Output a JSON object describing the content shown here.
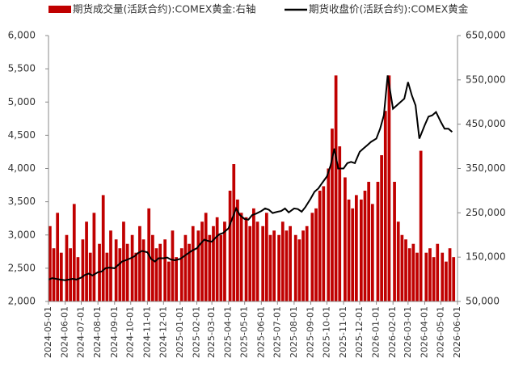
{
  "chart_data": {
    "type": "bar-line",
    "x": [
      "2024-05-01",
      "2024-05-08",
      "2024-05-15",
      "2024-05-22",
      "2024-06-01",
      "2024-06-08",
      "2024-06-15",
      "2024-06-22",
      "2024-07-01",
      "2024-07-08",
      "2024-07-15",
      "2024-07-22",
      "2024-08-01",
      "2024-08-08",
      "2024-08-15",
      "2024-08-22",
      "2024-09-01",
      "2024-09-08",
      "2024-09-15",
      "2024-09-22",
      "2024-10-01",
      "2024-10-08",
      "2024-10-15",
      "2024-10-22",
      "2024-11-01",
      "2024-11-08",
      "2024-11-15",
      "2024-11-22",
      "2024-12-01",
      "2024-12-08",
      "2024-12-15",
      "2024-12-22",
      "2025-01-01",
      "2025-01-08",
      "2025-01-15",
      "2025-01-22",
      "2025-02-01",
      "2025-02-08",
      "2025-02-15",
      "2025-02-22",
      "2025-03-01",
      "2025-03-08",
      "2025-03-15",
      "2025-03-22",
      "2025-04-01",
      "2025-04-08",
      "2025-04-15",
      "2025-04-22",
      "2025-05-01",
      "2025-05-08",
      "2025-05-15",
      "2025-05-22",
      "2025-06-01",
      "2025-06-08",
      "2025-06-15",
      "2025-06-22",
      "2025-07-01",
      "2025-07-08",
      "2025-07-15",
      "2025-07-22",
      "2025-08-01",
      "2025-08-08",
      "2025-08-15",
      "2025-08-22",
      "2025-09-01",
      "2025-09-08",
      "2025-09-15",
      "2025-09-22",
      "2025-10-01",
      "2025-10-08",
      "2025-10-15",
      "2025-10-22",
      "2025-11-01",
      "2025-11-08",
      "2025-11-15",
      "2025-11-22",
      "2025-12-01",
      "2025-12-08",
      "2025-12-15",
      "2025-12-22",
      "2026-01-01",
      "2026-01-08",
      "2026-01-15",
      "2026-01-22",
      "2026-02-01",
      "2026-02-08",
      "2026-02-15",
      "2026-02-22",
      "2026-03-01",
      "2026-03-08",
      "2026-03-15",
      "2026-03-22",
      "2026-04-01",
      "2026-04-08",
      "2026-04-15",
      "2026-04-22",
      "2026-05-01",
      "2026-05-08",
      "2026-05-15",
      "2026-05-22"
    ],
    "series": [
      {
        "name": "期货成交量(活跃合约):COMEX黄金:右轴",
        "type": "bar",
        "axis": "y2",
        "color": "#c00000",
        "values": [
          220000,
          170000,
          250000,
          160000,
          200000,
          170000,
          270000,
          150000,
          190000,
          230000,
          160000,
          250000,
          180000,
          290000,
          160000,
          210000,
          190000,
          170000,
          230000,
          180000,
          200000,
          160000,
          220000,
          190000,
          260000,
          200000,
          170000,
          180000,
          190000,
          140000,
          210000,
          150000,
          170000,
          200000,
          180000,
          220000,
          210000,
          230000,
          250000,
          200000,
          220000,
          240000,
          200000,
          230000,
          300000,
          360000,
          280000,
          250000,
          240000,
          220000,
          260000,
          230000,
          220000,
          250000,
          200000,
          210000,
          200000,
          230000,
          210000,
          220000,
          200000,
          190000,
          210000,
          220000,
          250000,
          260000,
          300000,
          310000,
          350000,
          440000,
          560000,
          400000,
          330000,
          280000,
          260000,
          290000,
          280000,
          300000,
          320000,
          270000,
          320000,
          380000,
          480000,
          560000,
          320000,
          230000,
          200000,
          190000,
          170000,
          180000,
          160000,
          390000,
          160000,
          170000,
          150000,
          180000,
          160000,
          140000,
          170000,
          150000
        ]
      },
      {
        "name": "期货收盘价(活跃合约):COMEX黄金",
        "type": "line",
        "axis": "y",
        "color": "#000000",
        "values": [
          2330,
          2350,
          2340,
          2330,
          2320,
          2330,
          2340,
          2330,
          2360,
          2400,
          2420,
          2390,
          2440,
          2450,
          2500,
          2510,
          2500,
          2550,
          2600,
          2620,
          2650,
          2680,
          2730,
          2760,
          2740,
          2640,
          2600,
          2650,
          2650,
          2660,
          2630,
          2620,
          2640,
          2680,
          2720,
          2760,
          2800,
          2870,
          2930,
          2910,
          2900,
          2960,
          3010,
          3030,
          3100,
          3250,
          3400,
          3300,
          3240,
          3230,
          3300,
          3320,
          3360,
          3400,
          3380,
          3330,
          3350,
          3360,
          3400,
          3340,
          3400,
          3390,
          3350,
          3420,
          3550,
          3650,
          3700,
          3780,
          3880,
          4050,
          4300,
          4000,
          4000,
          4080,
          4100,
          4080,
          4250,
          4300,
          4350,
          4400,
          4450,
          4600,
          4800,
          5400,
          4900,
          4950,
          5000,
          5050,
          5300,
          5100,
          4950,
          4450,
          4650,
          4780,
          4800,
          4850,
          4700,
          4600,
          4600,
          4550
        ]
      }
    ],
    "xlim": [
      "2024-05-01",
      "2026-06-01"
    ],
    "xticks": [
      "2024-05-01",
      "2024-06-01",
      "2024-07-01",
      "2024-08-01",
      "2024-09-01",
      "2024-10-01",
      "2024-11-01",
      "2024-12-01",
      "2025-01-01",
      "2025-02-01",
      "2025-03-01",
      "2025-04-01",
      "2025-05-01",
      "2025-06-01",
      "2025-07-01",
      "2025-08-01",
      "2025-09-01",
      "2025-10-01",
      "2025-11-01",
      "2025-12-01",
      "2026-01-01",
      "2026-02-01",
      "2026-03-01",
      "2026-04-01",
      "2026-05-01",
      "2026-06-01"
    ],
    "ylim": [
      2000,
      6000
    ],
    "yticks": [
      {
        "value": 2000,
        "label": "2,000"
      },
      {
        "value": 2500,
        "label": "2,500"
      },
      {
        "value": 3000,
        "label": "3,000"
      },
      {
        "value": 3500,
        "label": "3,500"
      },
      {
        "value": 4000,
        "label": "4,000"
      },
      {
        "value": 4500,
        "label": "4,500"
      },
      {
        "value": 5000,
        "label": "5,000"
      },
      {
        "value": 5500,
        "label": "5,500"
      },
      {
        "value": 6000,
        "label": "6,000"
      }
    ],
    "y2lim": [
      50000,
      650000
    ],
    "y2ticks": [
      {
        "value": 50000,
        "label": "50,000"
      },
      {
        "value": 150000,
        "label": "150,000"
      },
      {
        "value": 250000,
        "label": "250,000"
      },
      {
        "value": 350000,
        "label": "350,000"
      },
      {
        "value": 450000,
        "label": "450,000"
      },
      {
        "value": 550000,
        "label": "550,000"
      },
      {
        "value": 650000,
        "label": "650,000"
      }
    ]
  }
}
